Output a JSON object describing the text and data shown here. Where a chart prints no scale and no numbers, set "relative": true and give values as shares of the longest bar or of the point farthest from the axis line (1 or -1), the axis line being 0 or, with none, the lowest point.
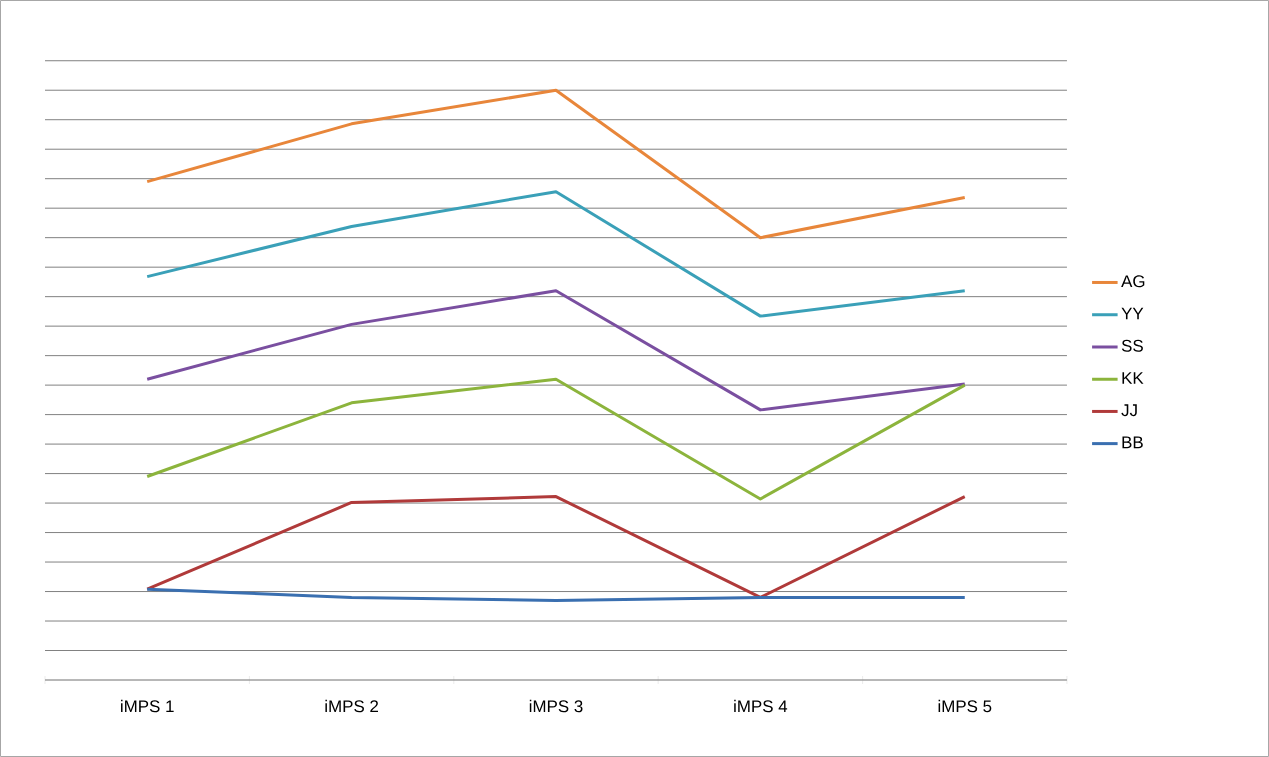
{
  "chart_data": {
    "type": "line",
    "relative": true,
    "grid": "y",
    "legend": "right",
    "categories": [
      "iMPS 1",
      "iMPS 2",
      "iMPS 3",
      "iMPS 4",
      "iMPS 5"
    ],
    "series": [
      {
        "name": "AG",
        "color": "#e8863a",
        "values": [
          0.845,
          0.943,
          1.0,
          0.75,
          0.818
        ]
      },
      {
        "name": "YY",
        "color": "#3aa0b8",
        "values": [
          0.684,
          0.769,
          0.828,
          0.617,
          0.66
        ]
      },
      {
        "name": "SS",
        "color": "#7a4fa0",
        "values": [
          0.51,
          0.603,
          0.66,
          0.458,
          0.502
        ]
      },
      {
        "name": "KK",
        "color": "#8cb43c",
        "values": [
          0.345,
          0.47,
          0.51,
          0.307,
          0.5
        ]
      },
      {
        "name": "JJ",
        "color": "#b03a3a",
        "values": [
          0.154,
          0.301,
          0.311,
          0.14,
          0.311
        ]
      },
      {
        "name": "BB",
        "color": "#3a6fb0",
        "values": [
          0.154,
          0.14,
          0.135,
          0.14,
          0.14
        ]
      }
    ]
  }
}
